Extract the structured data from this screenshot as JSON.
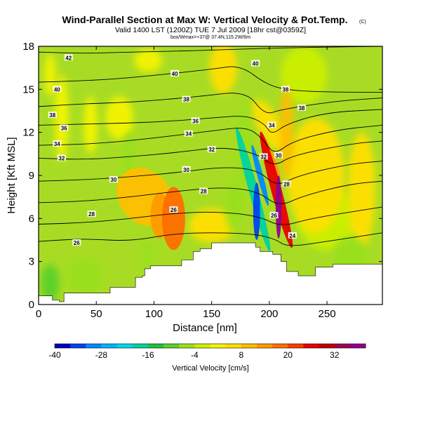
{
  "chart_data": {
    "type": "heatmap",
    "title": "Wind-Parallel Section at Max W: Vertical Velocity & Pot.Temp.",
    "title_mark": "(C)",
    "subtitle": "Valid 1400 LST (1200Z) TUE 7 Jul 2009 [18hr cst@0359Z]",
    "subtitle_small": "box/Wmax=+37@ 37.4N,115.2W/6m",
    "xlabel": "Distance [nm]",
    "ylabel": "Height [Kft MSL]",
    "xlim": [
      0,
      298
    ],
    "ylim": [
      0,
      18
    ],
    "x_ticks": [
      "0",
      "50",
      "100",
      "150",
      "200",
      "250"
    ],
    "x_tick_values": [
      0,
      50,
      100,
      150,
      200,
      250
    ],
    "y_ticks": [
      "0",
      "3",
      "6",
      "9",
      "12",
      "15",
      "18"
    ],
    "y_tick_values": [
      0,
      3,
      6,
      9,
      12,
      15,
      18
    ],
    "terrain": [
      [
        0,
        0.6
      ],
      [
        8,
        0.6
      ],
      [
        12,
        0.3
      ],
      [
        18,
        0.2
      ],
      [
        22,
        0.8
      ],
      [
        60,
        0.8
      ],
      [
        62,
        1.2
      ],
      [
        82,
        1.2
      ],
      [
        84,
        1.9
      ],
      [
        90,
        2.0
      ],
      [
        92,
        2.5
      ],
      [
        97,
        2.7
      ],
      [
        120,
        2.7
      ],
      [
        124,
        3.1
      ],
      [
        131,
        3.1
      ],
      [
        134,
        3.7
      ],
      [
        140,
        3.9
      ],
      [
        150,
        4.3
      ],
      [
        183,
        4.3
      ],
      [
        188,
        4.0
      ],
      [
        192,
        3.7
      ],
      [
        203,
        3.5
      ],
      [
        210,
        3.0
      ],
      [
        215,
        2.3
      ],
      [
        225,
        2.0
      ],
      [
        240,
        2.6
      ],
      [
        255,
        2.8
      ],
      [
        298,
        2.8
      ]
    ],
    "colorbar": {
      "title": "Vertical Velocity [cm/s]",
      "tick_labels": [
        "-40",
        "-28",
        "-16",
        "-4",
        "8",
        "20",
        "32"
      ],
      "tick_values": [
        -40,
        -28,
        -16,
        -4,
        8,
        20,
        32
      ],
      "range": [
        -40,
        40
      ],
      "colors": [
        "#0000bb",
        "#0044ee",
        "#0088ff",
        "#00b4ff",
        "#00d7e8",
        "#00d2a0",
        "#20c040",
        "#5cd02c",
        "#9ae01c",
        "#ccf000",
        "#f4f400",
        "#ffe000",
        "#ffbe00",
        "#ff9a00",
        "#ff6e00",
        "#ff3c00",
        "#e80000",
        "#c00000",
        "#a00050",
        "#900090"
      ]
    },
    "contours": [
      {
        "level": "42",
        "label": "42",
        "points": [
          [
            0,
            17.6
          ],
          [
            40,
            17.5
          ],
          [
            80,
            17.6
          ],
          [
            140,
            17.7
          ],
          [
            210,
            17.9
          ],
          [
            298,
            18.0
          ]
        ]
      },
      {
        "level": "40",
        "label": "40",
        "points": [
          [
            0,
            15.5
          ],
          [
            40,
            15.6
          ],
          [
            80,
            15.8
          ],
          [
            150,
            16.4
          ],
          [
            175,
            16.7
          ],
          [
            198,
            15.3
          ],
          [
            220,
            14.9
          ],
          [
            260,
            14.8
          ],
          [
            298,
            14.8
          ]
        ]
      },
      {
        "level": "38",
        "label": "38",
        "points": [
          [
            0,
            13.8
          ],
          [
            40,
            14.0
          ],
          [
            80,
            14.1
          ],
          [
            140,
            14.5
          ],
          [
            180,
            14.9
          ],
          [
            196,
            13.2
          ],
          [
            210,
            13.6
          ],
          [
            260,
            14.2
          ],
          [
            298,
            14.4
          ]
        ]
      },
      {
        "level": "36",
        "label": "36",
        "points": [
          [
            0,
            12.5
          ],
          [
            50,
            12.6
          ],
          [
            100,
            12.7
          ],
          [
            150,
            13.0
          ],
          [
            180,
            13.2
          ],
          [
            196,
            12.6
          ],
          [
            202,
            11.8
          ],
          [
            215,
            12.6
          ],
          [
            250,
            13.4
          ],
          [
            298,
            13.6
          ]
        ]
      },
      {
        "level": "34",
        "label": "34",
        "points": [
          [
            0,
            11.1
          ],
          [
            50,
            11.2
          ],
          [
            100,
            11.6
          ],
          [
            150,
            12.1
          ],
          [
            180,
            12.4
          ],
          [
            194,
            11.6
          ],
          [
            204,
            10.4
          ],
          [
            220,
            11.4
          ],
          [
            260,
            12.2
          ],
          [
            298,
            12.5
          ]
        ]
      },
      {
        "level": "32",
        "label": "32",
        "points": [
          [
            0,
            10.2
          ],
          [
            40,
            10.1
          ],
          [
            80,
            10.3
          ],
          [
            120,
            10.6
          ],
          [
            160,
            11.0
          ],
          [
            190,
            10.5
          ],
          [
            204,
            9.6
          ],
          [
            220,
            10.4
          ],
          [
            270,
            11.2
          ],
          [
            298,
            11.4
          ]
        ]
      },
      {
        "level": "30",
        "label": "30",
        "points": [
          [
            0,
            8.6
          ],
          [
            40,
            8.7
          ],
          [
            80,
            8.9
          ],
          [
            120,
            9.2
          ],
          [
            160,
            9.6
          ],
          [
            190,
            9.4
          ],
          [
            206,
            8.2
          ],
          [
            225,
            9.0
          ],
          [
            270,
            9.8
          ],
          [
            298,
            10.0
          ]
        ]
      },
      {
        "level": "28",
        "label": "28",
        "points": [
          [
            0,
            7.1
          ],
          [
            40,
            7.2
          ],
          [
            80,
            7.5
          ],
          [
            120,
            7.9
          ],
          [
            160,
            8.2
          ],
          [
            190,
            7.9
          ],
          [
            208,
            6.8
          ],
          [
            230,
            7.6
          ],
          [
            270,
            8.4
          ],
          [
            298,
            8.6
          ]
        ]
      },
      {
        "level": "26",
        "label": "26",
        "points": [
          [
            0,
            5.6
          ],
          [
            40,
            5.7
          ],
          [
            80,
            6.0
          ],
          [
            110,
            6.3
          ],
          [
            150,
            6.5
          ],
          [
            190,
            6.2
          ],
          [
            210,
            5.4
          ],
          [
            235,
            6.0
          ],
          [
            298,
            6.8
          ]
        ]
      },
      {
        "level": "24",
        "label": "24",
        "points": [
          [
            0,
            4.4
          ],
          [
            40,
            4.6
          ],
          [
            80,
            4.4
          ],
          [
            120,
            5.0
          ],
          [
            180,
            5.0
          ],
          [
            205,
            4.6
          ],
          [
            215,
            4.0
          ],
          [
            250,
            4.4
          ],
          [
            298,
            5.0
          ]
        ]
      }
    ],
    "contour_labels": [
      {
        "text": "42",
        "x": 26,
        "y": 17.2
      },
      {
        "text": "40",
        "x": 118,
        "y": 16.1
      },
      {
        "text": "40",
        "x": 188,
        "y": 16.8
      },
      {
        "text": "40",
        "x": 16,
        "y": 15.0
      },
      {
        "text": "38",
        "x": 128,
        "y": 14.3
      },
      {
        "text": "38",
        "x": 214,
        "y": 15.0
      },
      {
        "text": "38",
        "x": 228,
        "y": 13.7
      },
      {
        "text": "38",
        "x": 12,
        "y": 13.2
      },
      {
        "text": "36",
        "x": 136,
        "y": 12.8
      },
      {
        "text": "36",
        "x": 22,
        "y": 12.3
      },
      {
        "text": "34",
        "x": 202,
        "y": 12.5
      },
      {
        "text": "34",
        "x": 130,
        "y": 11.9
      },
      {
        "text": "34",
        "x": 16,
        "y": 11.2
      },
      {
        "text": "32",
        "x": 150,
        "y": 10.8
      },
      {
        "text": "32",
        "x": 195,
        "y": 10.3
      },
      {
        "text": "30",
        "x": 208,
        "y": 10.4
      },
      {
        "text": "32",
        "x": 20,
        "y": 10.2
      },
      {
        "text": "30",
        "x": 128,
        "y": 9.4
      },
      {
        "text": "30",
        "x": 65,
        "y": 8.7
      },
      {
        "text": "28",
        "x": 215,
        "y": 8.4
      },
      {
        "text": "28",
        "x": 143,
        "y": 7.9
      },
      {
        "text": "26",
        "x": 117,
        "y": 6.6
      },
      {
        "text": "28",
        "x": 46,
        "y": 6.3
      },
      {
        "text": "26",
        "x": 204,
        "y": 6.2
      },
      {
        "text": "24",
        "x": 220,
        "y": 4.8
      },
      {
        "text": "26",
        "x": 33,
        "y": 4.3
      }
    ],
    "field_blobs": [
      {
        "x": 92,
        "y": 7.5,
        "rx": 22,
        "ry": 2.2,
        "w": 10,
        "rot": -40
      },
      {
        "x": 117,
        "y": 6.0,
        "rx": 10,
        "ry": 2.2,
        "w": 18
      },
      {
        "x": 105,
        "y": 6.2,
        "rx": 8,
        "ry": 1.6,
        "w": 14
      },
      {
        "x": 186,
        "y": 8.0,
        "rx": 4,
        "ry": 4.5,
        "w": -20,
        "rot": -15
      },
      {
        "x": 189,
        "y": 6.5,
        "rx": 3,
        "ry": 2.0,
        "w": -36
      },
      {
        "x": 192,
        "y": 9.0,
        "rx": 2.5,
        "ry": 2.2,
        "w": -30,
        "rot": -15
      },
      {
        "x": 206,
        "y": 8.0,
        "rx": 4.5,
        "ry": 4.2,
        "w": 26,
        "rot": -15
      },
      {
        "x": 208,
        "y": 6.8,
        "rx": 2.5,
        "ry": 2.2,
        "w": 36
      },
      {
        "x": 202,
        "y": 10.0,
        "rx": 3.5,
        "ry": 1.8,
        "w": 14,
        "rot": -20
      },
      {
        "x": 200,
        "y": 12.5,
        "rx": 10,
        "ry": 2.0,
        "w": 4,
        "rot": -30
      },
      {
        "x": 215,
        "y": 12.0,
        "rx": 6,
        "ry": 3.2,
        "w": 8
      },
      {
        "x": 160,
        "y": 16.5,
        "rx": 12,
        "ry": 1.8,
        "w": 5
      },
      {
        "x": 70,
        "y": 13.0,
        "rx": 12,
        "ry": 1.5,
        "w": 3
      },
      {
        "x": 20,
        "y": 13.0,
        "rx": 6,
        "ry": 3,
        "w": 3
      },
      {
        "x": 150,
        "y": 5.5,
        "rx": 20,
        "ry": 1.2,
        "w": 4
      },
      {
        "x": 240,
        "y": 9.0,
        "rx": 25,
        "ry": 4,
        "w": 4
      },
      {
        "x": 280,
        "y": 8.0,
        "rx": 12,
        "ry": 4,
        "w": 4
      },
      {
        "x": 45,
        "y": 12.5,
        "rx": 6,
        "ry": 2,
        "w": 3
      },
      {
        "x": 10,
        "y": 16.0,
        "rx": 5,
        "ry": 1.5,
        "w": 3
      },
      {
        "x": 95,
        "y": 17.0,
        "rx": 12,
        "ry": 0.8,
        "w": 3
      },
      {
        "x": 170,
        "y": 7.0,
        "rx": 8,
        "ry": 2,
        "w": -6
      },
      {
        "x": 95,
        "y": 3.2,
        "rx": 5,
        "ry": 1.3,
        "w": -8
      },
      {
        "x": 78,
        "y": 10.0,
        "rx": 6,
        "ry": 2.0,
        "w": -6
      },
      {
        "x": 40,
        "y": 2.0,
        "rx": 15,
        "ry": 1.2,
        "w": -6
      },
      {
        "x": 10,
        "y": 1.5,
        "rx": 8,
        "ry": 1.3,
        "w": -9
      },
      {
        "x": 270,
        "y": 3.5,
        "rx": 15,
        "ry": 1.2,
        "w": -5
      },
      {
        "x": 178,
        "y": 11.0,
        "rx": 6,
        "ry": 3,
        "w": -8
      },
      {
        "x": 230,
        "y": 16.0,
        "rx": 20,
        "ry": 2,
        "w": -4
      },
      {
        "x": 250,
        "y": 6.0,
        "rx": 25,
        "ry": 2.2,
        "w": -3
      }
    ]
  }
}
